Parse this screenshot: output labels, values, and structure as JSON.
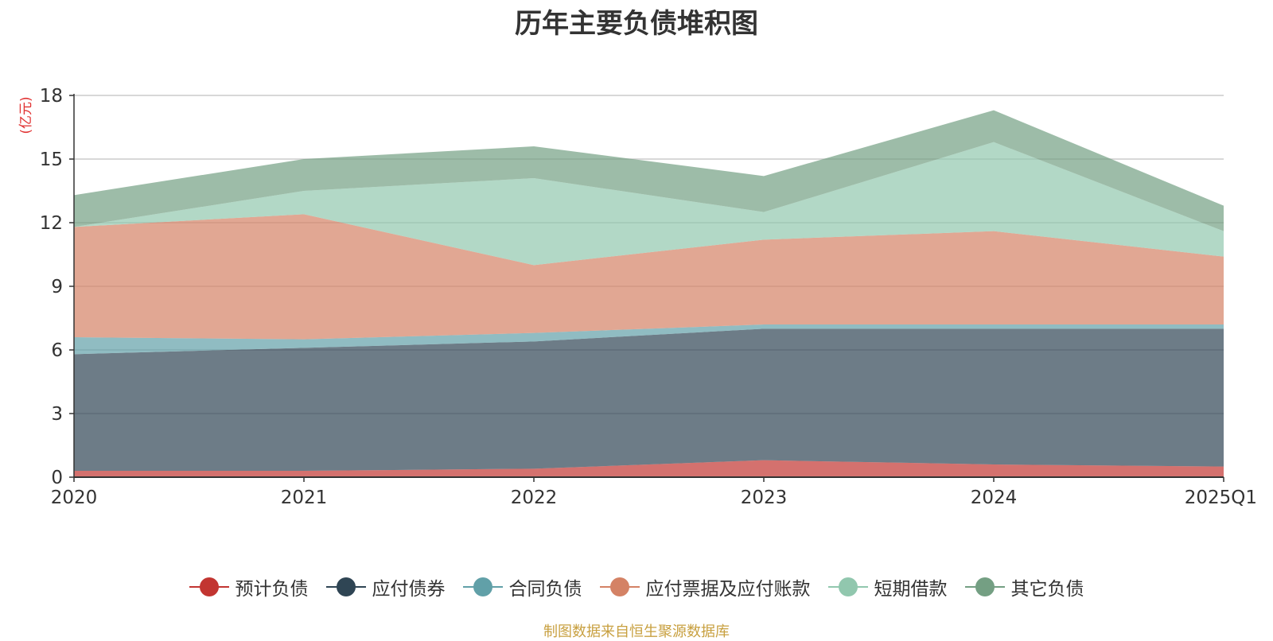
{
  "chart_data": {
    "type": "area",
    "stacked": true,
    "title": "历年主要负债堆积图",
    "ylabel": "(亿元)",
    "xlabel": "",
    "categories": [
      "2020",
      "2021",
      "2022",
      "2023",
      "2024",
      "2025Q1"
    ],
    "ylim": [
      0,
      18
    ],
    "yticks": [
      0,
      3,
      6,
      9,
      12,
      15,
      18
    ],
    "grid": true,
    "legend_position": "bottom",
    "series": [
      {
        "name": "预计负债",
        "color": "#c23531",
        "values": [
          0.3,
          0.3,
          0.4,
          0.8,
          0.6,
          0.5
        ]
      },
      {
        "name": "应付债券",
        "color": "#2f4554",
        "values": [
          5.5,
          5.8,
          6.0,
          6.2,
          6.4,
          6.5
        ]
      },
      {
        "name": "合同负债",
        "color": "#61a0a8",
        "values": [
          0.8,
          0.4,
          0.4,
          0.2,
          0.2,
          0.2
        ]
      },
      {
        "name": "应付票据及应付账款",
        "color": "#d48265",
        "values": [
          5.2,
          5.9,
          3.2,
          4.0,
          4.4,
          3.2
        ]
      },
      {
        "name": "短期借款",
        "color": "#91c7ae",
        "values": [
          0.0,
          1.1,
          4.1,
          1.3,
          4.2,
          1.2
        ]
      },
      {
        "name": "其它负债",
        "color": "#749f83",
        "values": [
          1.5,
          1.5,
          1.5,
          1.7,
          1.5,
          1.2
        ]
      }
    ]
  },
  "footer": {
    "source": "制图数据来自恒生聚源数据库"
  }
}
